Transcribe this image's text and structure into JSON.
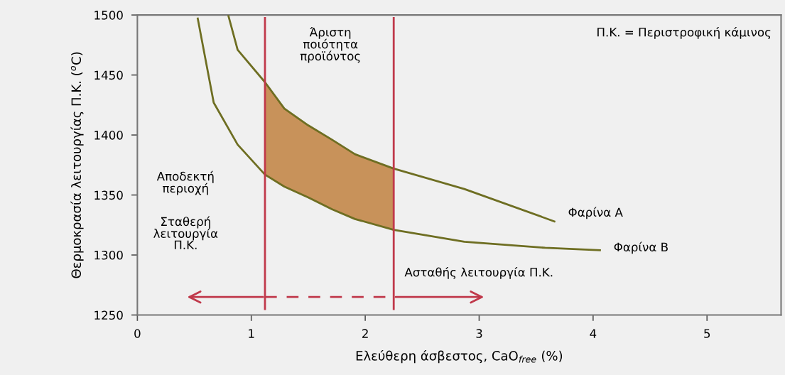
{
  "chart_data": {
    "type": "line",
    "xlabel": "Ελεύθερη άσβεστος, CaO$_{free}$ (%)",
    "ylabel": "Θερμοκρασία λειτουργίας Π.Κ. ($^{o}$C)",
    "xlim": [
      0,
      5.65
    ],
    "xticks": [
      0,
      1,
      2,
      3,
      4,
      5
    ],
    "ylim": [
      1250,
      1500
    ],
    "yticks": [
      1250,
      1300,
      1350,
      1400,
      1450,
      1500
    ],
    "grid": false,
    "legend": false,
    "marker": "none",
    "line_style": "solid",
    "series": [
      {
        "name": "Φαρίνα A",
        "color": "#6e6e22",
        "x": [
          0.8,
          0.88,
          1.12,
          1.29,
          1.5,
          1.71,
          1.91,
          2.25,
          2.87,
          3.66
        ],
        "values": [
          1499,
          1471,
          1444,
          1422,
          1408,
          1396,
          1384,
          1372,
          1355,
          1328
        ],
        "lower": [
          null,
          null,
          1367,
          1357,
          1348,
          1338,
          1330,
          1321,
          null,
          null
        ],
        "upper": [
          null,
          null,
          1444,
          1422,
          1408,
          1396,
          1384,
          1372,
          null,
          null
        ]
      },
      {
        "name": "Φαρίνα B",
        "color": "#6e6e22",
        "x": [
          0.53,
          0.67,
          0.88,
          1.12,
          1.29,
          1.5,
          1.71,
          1.91,
          2.25,
          2.87,
          3.58,
          4.06
        ],
        "values": [
          1497,
          1427,
          1392,
          1367,
          1357,
          1348,
          1338,
          1330,
          1321,
          1311,
          1306,
          1304
        ]
      }
    ],
    "ref_lines": [
      {
        "axis": "x",
        "value": 1.12,
        "color": "#c0394b"
      },
      {
        "axis": "x",
        "value": 2.25,
        "color": "#c0394b"
      }
    ],
    "annotations": [
      "Άριστη\nποιότητα\nπροϊόντος",
      "Π.Κ. = Περιστροφική κάμινος",
      "Αποδεκτή\nπεριοχή",
      "Σταθερή\nλειτουργία\nΠ.Κ.",
      "Ασταθής λειτουργία Π.Κ."
    ]
  }
}
